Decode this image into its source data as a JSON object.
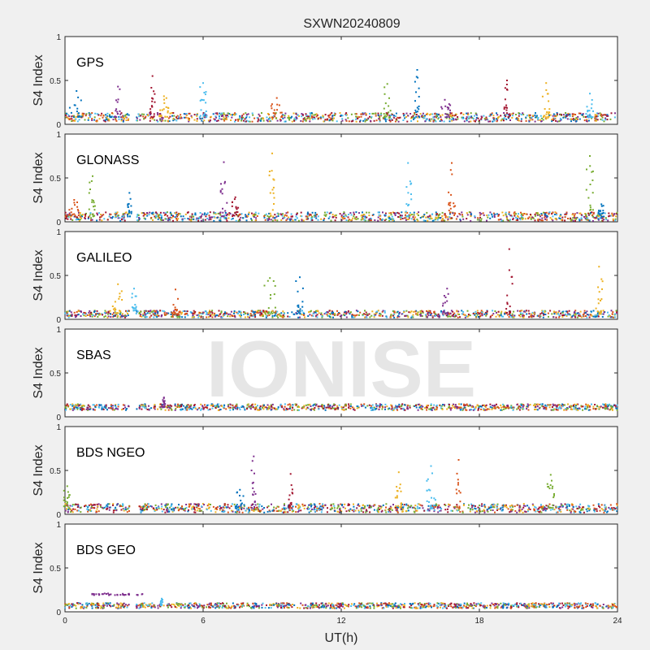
{
  "figure": {
    "title": "SXWN20240809",
    "watermark": "IONISE",
    "xlabel": "UT(h)",
    "ylabel": "S4 Index"
  },
  "chart_data": [
    {
      "type": "scatter",
      "name": "GPS",
      "xlim": [
        0,
        24
      ],
      "ylim": [
        0,
        1
      ],
      "xticks": [
        "0",
        "6",
        "12",
        "18",
        "24"
      ],
      "yticks": [
        "0",
        "0.5",
        "1"
      ],
      "xtick_values": [
        0,
        6,
        12,
        18,
        24
      ],
      "ytick_values": [
        0,
        0.5,
        1
      ],
      "baseline": 0.08,
      "noise": 0.05,
      "gaps": [
        [
          2.8,
          3.1
        ]
      ],
      "events": [
        {
          "t": 0.5,
          "h": 0.38,
          "w": 0.6
        },
        {
          "t": 2.3,
          "h": 0.43,
          "w": 0.3
        },
        {
          "t": 3.8,
          "h": 0.55,
          "w": 0.2
        },
        {
          "t": 4.3,
          "h": 0.32,
          "w": 0.4
        },
        {
          "t": 6.0,
          "h": 0.47,
          "w": 0.3
        },
        {
          "t": 9.2,
          "h": 0.3,
          "w": 0.5
        },
        {
          "t": 14.0,
          "h": 0.46,
          "w": 0.3
        },
        {
          "t": 15.3,
          "h": 0.62,
          "w": 0.2
        },
        {
          "t": 16.5,
          "h": 0.28,
          "w": 0.5
        },
        {
          "t": 19.2,
          "h": 0.5,
          "w": 0.3
        },
        {
          "t": 20.9,
          "h": 0.47,
          "w": 0.3
        },
        {
          "t": 22.8,
          "h": 0.35,
          "w": 0.3
        }
      ]
    },
    {
      "type": "scatter",
      "name": "GLONASS",
      "xlim": [
        0,
        24
      ],
      "ylim": [
        0,
        1
      ],
      "xticks": [
        "0",
        "6",
        "12",
        "18",
        "24"
      ],
      "yticks": [
        "0",
        "0.5",
        "1"
      ],
      "xtick_values": [
        0,
        6,
        12,
        18,
        24
      ],
      "ytick_values": [
        0,
        0.5,
        1
      ],
      "baseline": 0.06,
      "noise": 0.05,
      "gaps": [
        [
          2.8,
          3.1
        ]
      ],
      "events": [
        {
          "t": 0.4,
          "h": 0.25,
          "w": 0.5
        },
        {
          "t": 1.2,
          "h": 0.52,
          "w": 0.3
        },
        {
          "t": 2.8,
          "h": 0.33,
          "w": 0.2
        },
        {
          "t": 6.9,
          "h": 0.68,
          "w": 0.3
        },
        {
          "t": 7.4,
          "h": 0.28,
          "w": 0.3
        },
        {
          "t": 9.0,
          "h": 0.78,
          "w": 0.3
        },
        {
          "t": 14.9,
          "h": 0.67,
          "w": 0.3
        },
        {
          "t": 16.8,
          "h": 0.67,
          "w": 0.3
        },
        {
          "t": 22.8,
          "h": 0.75,
          "w": 0.3
        },
        {
          "t": 23.3,
          "h": 0.2,
          "w": 0.3
        }
      ]
    },
    {
      "type": "scatter",
      "name": "GALILEO",
      "xlim": [
        0,
        24
      ],
      "ylim": [
        0,
        1
      ],
      "xticks": [
        "0",
        "6",
        "12",
        "18",
        "24"
      ],
      "yticks": [
        "0",
        "0.5",
        "1"
      ],
      "xtick_values": [
        0,
        6,
        12,
        18,
        24
      ],
      "ytick_values": [
        0,
        0.5,
        1
      ],
      "baseline": 0.06,
      "noise": 0.04,
      "gaps": [
        [
          2.8,
          3.1
        ]
      ],
      "events": [
        {
          "t": 2.3,
          "h": 0.4,
          "w": 0.5
        },
        {
          "t": 3.0,
          "h": 0.35,
          "w": 0.2
        },
        {
          "t": 4.8,
          "h": 0.34,
          "w": 0.4
        },
        {
          "t": 8.9,
          "h": 0.47,
          "w": 0.5
        },
        {
          "t": 10.2,
          "h": 0.48,
          "w": 0.4
        },
        {
          "t": 16.6,
          "h": 0.35,
          "w": 0.4
        },
        {
          "t": 19.3,
          "h": 0.8,
          "w": 0.3
        },
        {
          "t": 23.2,
          "h": 0.6,
          "w": 0.3
        }
      ]
    },
    {
      "type": "scatter",
      "name": "SBAS",
      "xlim": [
        0,
        24
      ],
      "ylim": [
        0,
        1
      ],
      "xticks": [
        "0",
        "6",
        "12",
        "18",
        "24"
      ],
      "yticks": [
        "0",
        "0.5",
        "1"
      ],
      "xtick_values": [
        0,
        6,
        12,
        18,
        24
      ],
      "ytick_values": [
        0,
        0.5,
        1
      ],
      "baseline": 0.11,
      "noise": 0.035,
      "gaps": [
        [
          2.8,
          3.1
        ]
      ],
      "events": [
        {
          "t": 4.3,
          "h": 0.22,
          "w": 0.1
        }
      ]
    },
    {
      "type": "scatter",
      "name": "BDS NGEO",
      "xlim": [
        0,
        24
      ],
      "ylim": [
        0,
        1
      ],
      "xticks": [
        "0",
        "6",
        "12",
        "18",
        "24"
      ],
      "yticks": [
        "0",
        "0.5",
        "1"
      ],
      "xtick_values": [
        0,
        6,
        12,
        18,
        24
      ],
      "ytick_values": [
        0,
        0.5,
        1
      ],
      "baseline": 0.07,
      "noise": 0.05,
      "gaps": [
        [
          2.8,
          3.1
        ]
      ],
      "events": [
        {
          "t": 0.1,
          "h": 0.32,
          "w": 0.3
        },
        {
          "t": 7.6,
          "h": 0.28,
          "w": 0.4
        },
        {
          "t": 8.2,
          "h": 0.66,
          "w": 0.2
        },
        {
          "t": 9.8,
          "h": 0.46,
          "w": 0.2
        },
        {
          "t": 14.5,
          "h": 0.48,
          "w": 0.3
        },
        {
          "t": 15.9,
          "h": 0.55,
          "w": 0.4
        },
        {
          "t": 17.1,
          "h": 0.62,
          "w": 0.2
        },
        {
          "t": 21.1,
          "h": 0.45,
          "w": 0.3
        }
      ]
    },
    {
      "type": "scatter",
      "name": "BDS GEO",
      "xlim": [
        0,
        24
      ],
      "ylim": [
        0,
        1
      ],
      "xticks": [
        "0",
        "6",
        "12",
        "18",
        "24"
      ],
      "yticks": [
        "0",
        "0.5",
        "1"
      ],
      "xtick_values": [
        0,
        6,
        12,
        18,
        24
      ],
      "ytick_values": [
        0,
        0.5,
        1
      ],
      "baseline": 0.07,
      "noise": 0.03,
      "gaps": [
        [
          2.8,
          3.1
        ]
      ],
      "plateau": {
        "start": 1.0,
        "end": 3.4,
        "value": 0.2
      },
      "events": [
        {
          "t": 4.2,
          "h": 0.15,
          "w": 0.1
        }
      ]
    }
  ],
  "colors": [
    "#0072bd",
    "#d95319",
    "#edb120",
    "#7e2f8e",
    "#77ac30",
    "#4dbeee",
    "#a2142f"
  ]
}
